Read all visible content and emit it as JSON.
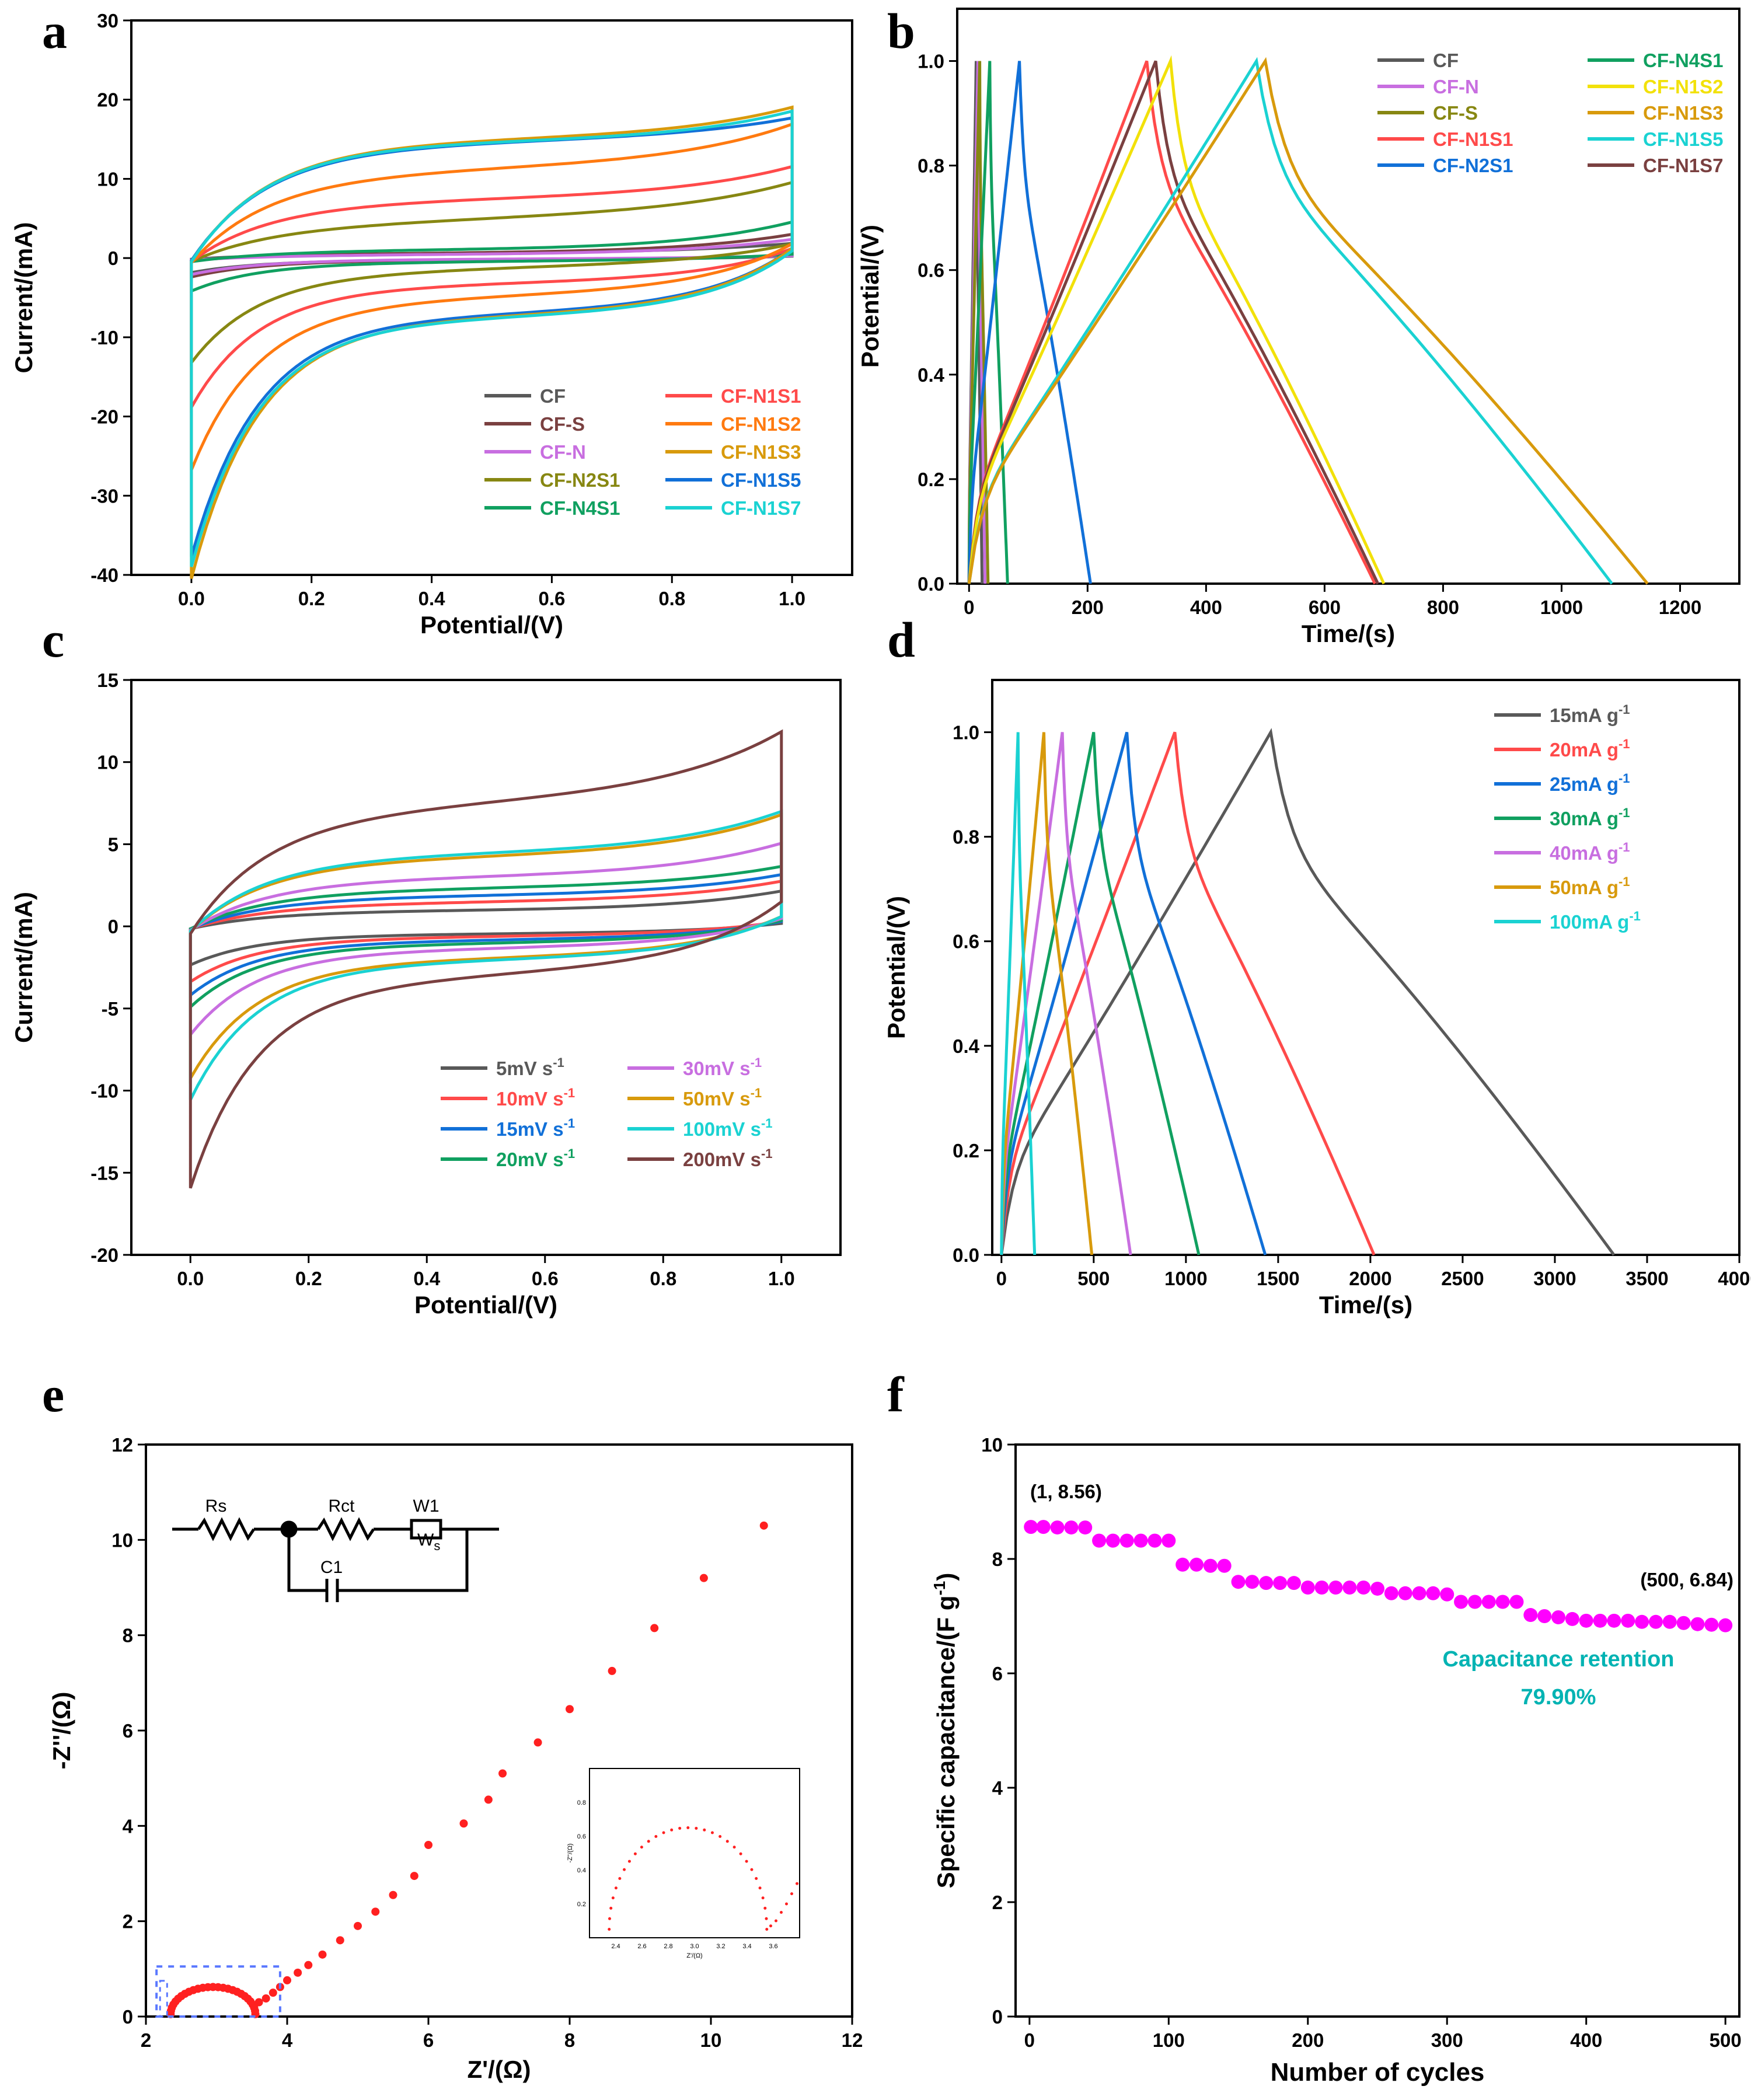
{
  "figure": {
    "panels": [
      {
        "id": "a",
        "type": "line",
        "xlabel": "Potential/(V)",
        "ylabel": "Current/(mA)",
        "xlim": [
          -0.1,
          1.1
        ],
        "ylim": [
          -40,
          30
        ],
        "xticks": [
          0.0,
          0.2,
          0.4,
          0.6,
          0.8,
          1.0
        ],
        "xtick_labels": [
          "0.0",
          "0.2",
          "0.4",
          "0.6",
          "0.8",
          "1.0"
        ],
        "yticks": [
          -40,
          -30,
          -20,
          -10,
          0,
          10,
          20,
          30
        ],
        "ytick_labels": [
          "-40",
          "-30",
          "-20",
          "-10",
          "0",
          "10",
          "20",
          "30"
        ],
        "legend_position": "bottom-right",
        "legend": [
          {
            "label": "CF",
            "color": "#595959"
          },
          {
            "label": "CF-S",
            "color": "#7a4040"
          },
          {
            "label": "CF-N",
            "color": "#c86ee0"
          },
          {
            "label": "CF-N2S1",
            "color": "#878712"
          },
          {
            "label": "CF-N4S1",
            "color": "#10a060"
          },
          {
            "label": "CF-N1S1",
            "color": "#ff4a4a"
          },
          {
            "label": "CF-N1S2",
            "color": "#ff7a10"
          },
          {
            "label": "CF-N1S3",
            "color": "#d89a0c"
          },
          {
            "label": "CF-N1S5",
            "color": "#1170d8"
          },
          {
            "label": "CF-N1S7",
            "color": "#1ad2d2"
          }
        ],
        "cv_loops": [
          {
            "color": "#595959",
            "a": 1.5,
            "i0": 0.6,
            "r": 1.2,
            "b": 0.5,
            "s": 0.4
          },
          {
            "color": "#7a4040",
            "a": 2.0,
            "i0": 0.7,
            "r": 1.5,
            "b": 1.0,
            "s": 0.6
          },
          {
            "color": "#c86ee0",
            "a": 1.8,
            "i0": 0.5,
            "r": 1.5,
            "b": 0.8,
            "s": 0.5
          },
          {
            "color": "#10a060",
            "a": 3.5,
            "i0": 1.2,
            "r": 2.5,
            "b": 1.5,
            "s": 0.8
          },
          {
            "color": "#878712",
            "a": 11,
            "i0": 4.0,
            "r": 8.0,
            "b": 1.5,
            "s": 3.0
          },
          {
            "color": "#ff4a4a",
            "a": 15,
            "i0": 7.0,
            "r": 10.0,
            "b": 1.5,
            "s": 2.0
          },
          {
            "color": "#ff7a10",
            "a": 21,
            "i0": 10.5,
            "r": 8.0,
            "b": 2.0,
            "s": 3.0
          },
          {
            "color": "#1170d8",
            "a": 30,
            "i0": 14.0,
            "r": 5.0,
            "b": 1.0,
            "s": 2.0
          },
          {
            "color": "#d89a0c",
            "a": 32.5,
            "i0": 14.5,
            "r": 5.0,
            "b": 1.5,
            "s": 2.0
          },
          {
            "color": "#1ad2d2",
            "a": 31,
            "i0": 14.5,
            "r": 5.0,
            "b": 1.5,
            "s": 1.5
          }
        ]
      },
      {
        "id": "b",
        "type": "line",
        "xlabel": "Time/(s)",
        "ylabel": "Potential/(V)",
        "xlim": [
          -20,
          1300
        ],
        "ylim": [
          0,
          1.1
        ],
        "xticks": [
          0,
          200,
          400,
          600,
          800,
          1000,
          1200
        ],
        "xtick_labels": [
          "0",
          "200",
          "400",
          "600",
          "800",
          "1000",
          "1200"
        ],
        "yticks": [
          0.0,
          0.2,
          0.4,
          0.6,
          0.8,
          1.0
        ],
        "ytick_labels": [
          "0.0",
          "0.2",
          "0.4",
          "0.6",
          "0.8",
          "1.0"
        ],
        "legend_position": "top-right",
        "legend": [
          {
            "label": "CF",
            "color": "#595959"
          },
          {
            "label": "CF-N",
            "color": "#c86ee0"
          },
          {
            "label": "CF-S",
            "color": "#878712"
          },
          {
            "label": "CF-N1S1",
            "color": "#ff4a4a"
          },
          {
            "label": "CF-N2S1",
            "color": "#1170d8"
          },
          {
            "label": "CF-N4S1",
            "color": "#10a060"
          },
          {
            "label": "CF-N1S2",
            "color": "#f2e10a"
          },
          {
            "label": "CF-N1S3",
            "color": "#d89a0c"
          },
          {
            "label": "CF-N1S5",
            "color": "#1ad2d2"
          },
          {
            "label": "CF-N1S7",
            "color": "#7a4040"
          }
        ],
        "gcd_curves": [
          {
            "color": "#595959",
            "tc": 12,
            "td": 22
          },
          {
            "color": "#c86ee0",
            "tc": 15,
            "td": 27
          },
          {
            "color": "#878712",
            "tc": 18,
            "td": 32
          },
          {
            "color": "#10a060",
            "tc": 35,
            "td": 65
          },
          {
            "color": "#1170d8",
            "tc": 85,
            "td": 205
          },
          {
            "color": "#ff4a4a",
            "tc": 300,
            "td": 685
          },
          {
            "color": "#7a4040",
            "tc": 315,
            "td": 690
          },
          {
            "color": "#f2e10a",
            "tc": 340,
            "td": 700
          },
          {
            "color": "#1ad2d2",
            "tc": 485,
            "td": 1085
          },
          {
            "color": "#d89a0c",
            "tc": 500,
            "td": 1145
          }
        ]
      },
      {
        "id": "c",
        "type": "line",
        "xlabel": "Potential/(V)",
        "ylabel": "Current/(mA)",
        "xlim": [
          -0.1,
          1.1
        ],
        "ylim": [
          -20,
          15
        ],
        "xticks": [
          0.0,
          0.2,
          0.4,
          0.6,
          0.8,
          1.0
        ],
        "xtick_labels": [
          "0.0",
          "0.2",
          "0.4",
          "0.6",
          "0.8",
          "1.0"
        ],
        "yticks": [
          -20,
          -15,
          -10,
          -5,
          0,
          5,
          10,
          15
        ],
        "ytick_labels": [
          "-20",
          "-15",
          "-10",
          "-5",
          "0",
          "5",
          "10",
          "15"
        ],
        "legend_position": "bottom-right",
        "legend": [
          {
            "label": "5mV s",
            "sup": "-1",
            "color": "#595959"
          },
          {
            "label": "10mV s",
            "sup": "-1",
            "color": "#ff4a4a"
          },
          {
            "label": "15mV s",
            "sup": "-1",
            "color": "#1170d8"
          },
          {
            "label": "20mV s",
            "sup": "-1",
            "color": "#10a060"
          },
          {
            "label": "30mV s",
            "sup": "-1",
            "color": "#c86ee0"
          },
          {
            "label": "50mV s",
            "sup": "-1",
            "color": "#d89a0c"
          },
          {
            "label": "100mV s",
            "sup": "-1",
            "color": "#1ad2d2"
          },
          {
            "label": "200mV s",
            "sup": "-1",
            "color": "#7a4040"
          }
        ],
        "cv_loops": [
          {
            "color": "#595959",
            "a": 1.8,
            "i0": 1.0,
            "r": 1.0,
            "b": 0.5,
            "s": 0.3
          },
          {
            "color": "#ff4a4a",
            "a": 2.6,
            "i0": 1.4,
            "r": 1.2,
            "b": 0.5,
            "s": 0.5
          },
          {
            "color": "#1170d8",
            "a": 3.2,
            "i0": 1.8,
            "r": 1.2,
            "b": 0.5,
            "s": 0.5
          },
          {
            "color": "#10a060",
            "a": 3.7,
            "i0": 2.2,
            "r": 1.3,
            "b": 0.5,
            "s": 0.6
          },
          {
            "color": "#c86ee0",
            "a": 5.0,
            "i0": 2.9,
            "r": 1.5,
            "b": 0.8,
            "s": 0.8
          },
          {
            "color": "#d89a0c",
            "a": 7.0,
            "i0": 4.1,
            "r": 2.0,
            "b": 1.0,
            "s": 1.0
          },
          {
            "color": "#1ad2d2",
            "a": 8.2,
            "i0": 4.3,
            "r": 2.0,
            "b": 1.0,
            "s": 1.0
          },
          {
            "color": "#7a4040",
            "a": 12.2,
            "i0": 6.8,
            "r": 3.5,
            "b": 1.5,
            "s": 2.5
          }
        ]
      },
      {
        "id": "d",
        "type": "line",
        "xlabel": "Time/(s)",
        "ylabel": "Potential/(V)",
        "xlim": [
          -50,
          4000
        ],
        "ylim": [
          0,
          1.1
        ],
        "xticks": [
          0,
          500,
          1000,
          1500,
          2000,
          2500,
          3000,
          3500,
          4000
        ],
        "xtick_labels": [
          "0",
          "500",
          "1000",
          "1500",
          "2000",
          "2500",
          "3000",
          "3500",
          "4000"
        ],
        "yticks": [
          0.0,
          0.2,
          0.4,
          0.6,
          0.8,
          1.0
        ],
        "ytick_labels": [
          "0.0",
          "0.2",
          "0.4",
          "0.6",
          "0.8",
          "1.0"
        ],
        "legend_position": "top-right",
        "legend": [
          {
            "label": "15mA g",
            "sup": "-1",
            "color": "#595959"
          },
          {
            "label": "20mA g",
            "sup": "-1",
            "color": "#ff4a4a"
          },
          {
            "label": "25mA g",
            "sup": "-1",
            "color": "#1170d8"
          },
          {
            "label": "30mA g",
            "sup": "-1",
            "color": "#10a060"
          },
          {
            "label": "40mA g",
            "sup": "-1",
            "color": "#c86ee0"
          },
          {
            "label": "50mA g",
            "sup": "-1",
            "color": "#d89a0c"
          },
          {
            "label": "100mA g",
            "sup": "-1",
            "color": "#1ad2d2"
          }
        ],
        "gcd_curves": [
          {
            "color": "#595959",
            "tc": 1460,
            "td": 3320
          },
          {
            "color": "#ff4a4a",
            "tc": 940,
            "td": 2020
          },
          {
            "color": "#1170d8",
            "tc": 680,
            "td": 1430
          },
          {
            "color": "#10a060",
            "tc": 500,
            "td": 1070
          },
          {
            "color": "#c86ee0",
            "tc": 330,
            "td": 700
          },
          {
            "color": "#d89a0c",
            "tc": 230,
            "td": 490
          },
          {
            "color": "#1ad2d2",
            "tc": 90,
            "td": 180
          }
        ]
      },
      {
        "id": "e",
        "type": "scatter",
        "xlabel": "Z'/(Ω)",
        "ylabel": "-Z''/(Ω)",
        "xlim": [
          2,
          12
        ],
        "ylim": [
          0,
          12
        ],
        "xticks": [
          2,
          4,
          6,
          8,
          10,
          12
        ],
        "xtick_labels": [
          "2",
          "4",
          "6",
          "8",
          "10",
          "12"
        ],
        "yticks": [
          0,
          2,
          4,
          6,
          8,
          10,
          12
        ],
        "ytick_labels": [
          "0",
          "2",
          "4",
          "6",
          "8",
          "10",
          "12"
        ],
        "series_color": "#ff2020",
        "nyquist": {
          "arc_start": 2.35,
          "arc_center": 2.95,
          "arc_radius": 0.6,
          "arc_min": 3.55,
          "line_points": [
            [
              3.6,
              0.3
            ],
            [
              3.7,
              0.38
            ],
            [
              3.8,
              0.5
            ],
            [
              3.9,
              0.62
            ],
            [
              4.0,
              0.76
            ],
            [
              4.15,
              0.92
            ],
            [
              4.3,
              1.08
            ],
            [
              4.5,
              1.3
            ],
            [
              4.75,
              1.6
            ],
            [
              5.0,
              1.9
            ],
            [
              5.25,
              2.2
            ],
            [
              5.5,
              2.55
            ],
            [
              5.8,
              2.95
            ],
            [
              6.0,
              3.6
            ],
            [
              6.5,
              4.05
            ],
            [
              6.85,
              4.55
            ],
            [
              7.05,
              5.1
            ],
            [
              7.55,
              5.75
            ],
            [
              8.0,
              6.45
            ],
            [
              8.6,
              7.25
            ],
            [
              9.2,
              8.15
            ],
            [
              9.9,
              9.2
            ],
            [
              10.75,
              10.3
            ]
          ]
        },
        "circuit_labels": {
          "rs": "Rs",
          "rct": "Rct",
          "w1": "W1",
          "ws": "W",
          "ws_sub": "s",
          "c1": "C1"
        },
        "inset": {
          "xlim": [
            2.2,
            3.8
          ],
          "ylim": [
            0,
            1.0
          ],
          "xtick_labels": [
            "2.4",
            "2.6",
            "2.8",
            "3.0",
            "3.2",
            "3.4",
            "3.6"
          ],
          "ytick_labels": [
            "0.2",
            "0.4",
            "0.6",
            "0.8"
          ],
          "xlabel": "Z'/(Ω)",
          "ylabel": "-Z''/(Ω)"
        }
      },
      {
        "id": "f",
        "type": "scatter",
        "xlabel": "Number of cycles",
        "ylabel": "Specific capacitance/(F g",
        "ylabel_sup": "-1",
        "ylabel_end": ")",
        "xlim": [
          -10,
          510
        ],
        "ylim": [
          0,
          10
        ],
        "xticks": [
          0,
          100,
          200,
          300,
          400,
          500
        ],
        "xtick_labels": [
          "0",
          "100",
          "200",
          "300",
          "400",
          "500"
        ],
        "yticks": [
          0,
          2,
          4,
          6,
          8,
          10
        ],
        "ytick_labels": [
          "0",
          "2",
          "4",
          "6",
          "8",
          "10"
        ],
        "series_color": "#ff00ff",
        "x": [
          1,
          10,
          20,
          30,
          40,
          50,
          60,
          70,
          80,
          90,
          100,
          110,
          120,
          130,
          140,
          150,
          160,
          170,
          180,
          190,
          200,
          210,
          220,
          230,
          240,
          250,
          260,
          270,
          280,
          290,
          300,
          310,
          320,
          330,
          340,
          350,
          360,
          370,
          380,
          390,
          400,
          410,
          420,
          430,
          440,
          450,
          460,
          470,
          480,
          490,
          500
        ],
        "values": [
          8.56,
          8.56,
          8.55,
          8.55,
          8.55,
          8.32,
          8.32,
          8.32,
          8.32,
          8.32,
          8.32,
          7.9,
          7.9,
          7.88,
          7.88,
          7.6,
          7.6,
          7.58,
          7.58,
          7.58,
          7.5,
          7.5,
          7.5,
          7.5,
          7.5,
          7.48,
          7.4,
          7.4,
          7.4,
          7.4,
          7.38,
          7.25,
          7.25,
          7.25,
          7.25,
          7.25,
          7.02,
          7.0,
          6.98,
          6.95,
          6.92,
          6.92,
          6.92,
          6.92,
          6.9,
          6.9,
          6.9,
          6.88,
          6.86,
          6.85,
          6.84
        ],
        "annotations": {
          "start": "(1, 8.56)",
          "end": "(500, 6.84)",
          "retention_label": "Capacitance retention",
          "retention_value": "79.90%",
          "retention_color": "#00b3b3"
        }
      }
    ]
  }
}
